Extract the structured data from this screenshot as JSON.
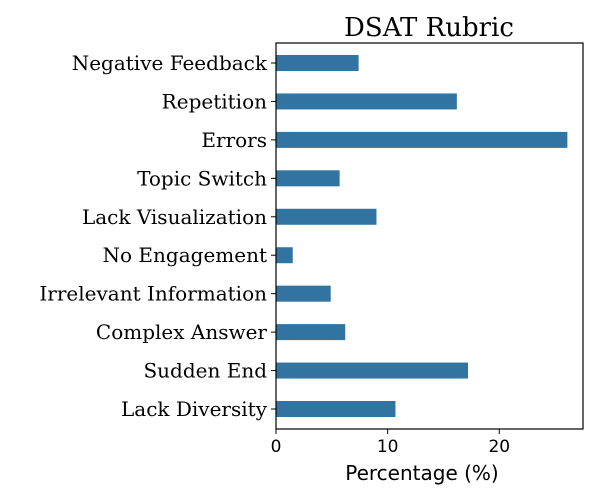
{
  "chart_data": {
    "type": "bar",
    "orientation": "horizontal",
    "title": "DSAT Rubric",
    "xlabel": "Percentage (%)",
    "ylabel": "",
    "categories": [
      "Negative Feedback",
      "Repetition",
      "Errors",
      "Topic Switch",
      "Lack Visualization",
      "No Engagement",
      "Irrelevant Information",
      "Complex Answer",
      "Sudden End",
      "Lack Diversity"
    ],
    "values": [
      7.4,
      16.2,
      26.1,
      5.7,
      9.0,
      1.5,
      4.9,
      6.2,
      17.2,
      10.7
    ],
    "xlim": [
      0,
      27.5
    ],
    "xticks": [
      0,
      10,
      20
    ],
    "xtick_labels": [
      "0",
      "10",
      "20"
    ],
    "grid": false,
    "bar_color": "#3274a1"
  }
}
